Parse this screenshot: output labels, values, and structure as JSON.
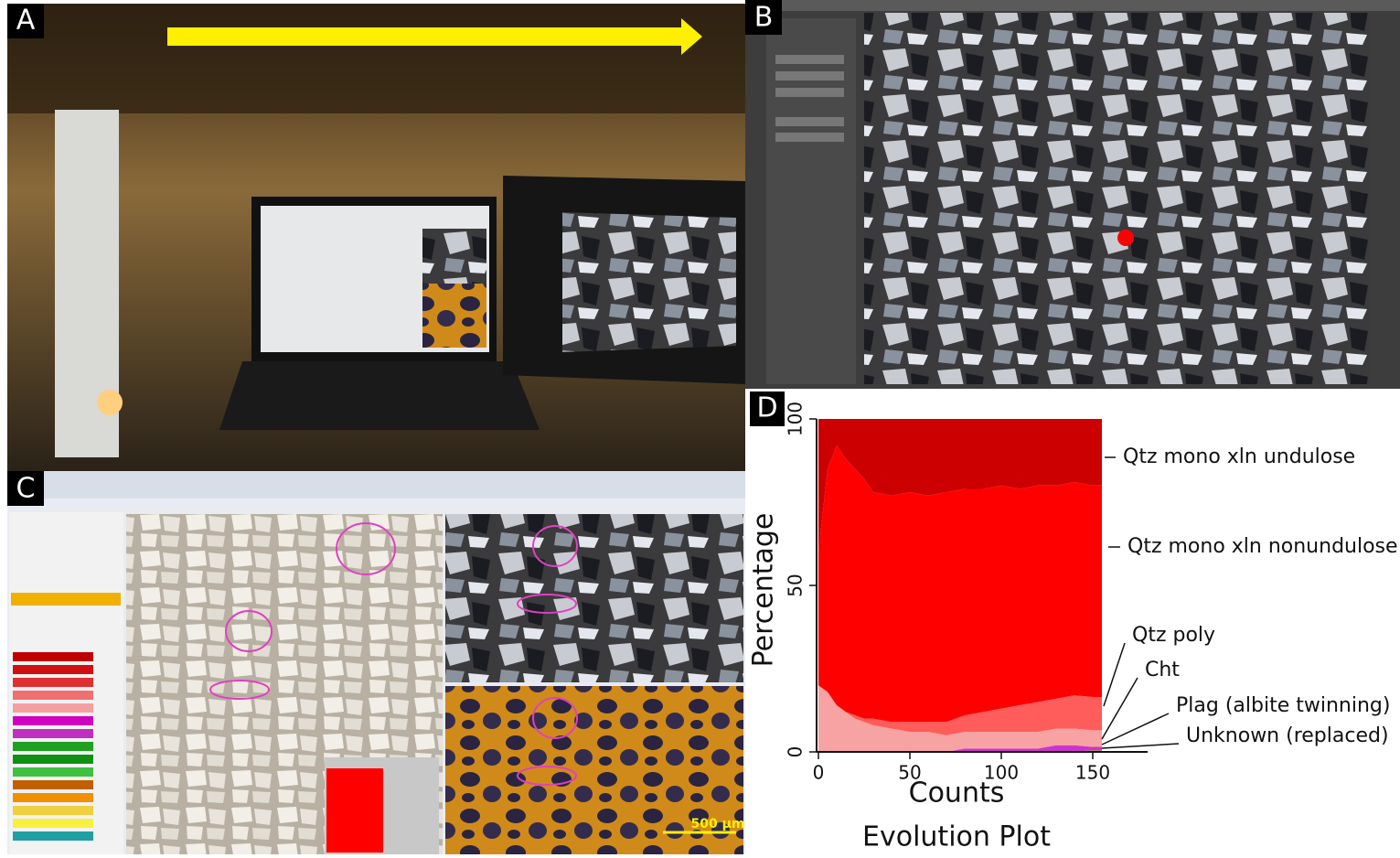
{
  "panels": {
    "a": "A",
    "b": "B",
    "c": "C",
    "d": "D"
  },
  "scale_bar": "500 µm",
  "chart_data": {
    "type": "area",
    "caption": "Evolution Plot",
    "x_label": "Counts",
    "y_label": "Percentage",
    "xlim": [
      -1,
      180
    ],
    "xticks": [
      0,
      50,
      100,
      150
    ],
    "ylim": [
      0,
      100
    ],
    "yticks": [
      0,
      50,
      100
    ],
    "x": [
      0,
      5,
      10,
      15,
      20,
      25,
      30,
      40,
      50,
      60,
      70,
      80,
      90,
      100,
      110,
      120,
      130,
      140,
      150,
      155
    ],
    "series": [
      {
        "name": "Unknown (replaced)",
        "color": "#9a8a3a",
        "values": [
          0,
          0,
          0,
          0,
          0,
          0,
          0,
          0,
          0,
          0,
          0,
          0,
          0,
          0,
          0,
          0,
          0,
          0,
          0.5,
          0.5
        ]
      },
      {
        "name": "Plag (albite twinning)",
        "color": "#cc33cc",
        "values": [
          0,
          0,
          0,
          0,
          0,
          0,
          0,
          0,
          0,
          0,
          0,
          1,
          1,
          1,
          1,
          1,
          2,
          2,
          1,
          1
        ]
      },
      {
        "name": "Cht",
        "color": "#f7a3a3",
        "values": [
          20,
          18,
          14,
          12,
          10,
          9,
          8,
          7,
          6,
          6,
          5,
          5,
          5,
          5,
          5,
          5,
          5,
          5,
          5,
          5
        ]
      },
      {
        "name": "Qtz poly",
        "color": "#ff5c5c",
        "values": [
          0,
          0,
          0,
          0,
          1,
          1,
          2,
          2,
          3,
          3,
          4,
          5,
          6,
          7,
          8,
          9,
          9,
          10,
          10,
          10
        ]
      },
      {
        "name": "Qtz mono xln nonundulose",
        "color": "#ff0000",
        "values": [
          40,
          67,
          78,
          76,
          74,
          72,
          68,
          68,
          69,
          68,
          69,
          68,
          67,
          67,
          65,
          65,
          64,
          64,
          63.5,
          63.5
        ]
      },
      {
        "name": "Qtz mono xln undulose",
        "color": "#cc0000",
        "values": [
          40,
          15,
          8,
          12,
          15,
          18,
          22,
          23,
          22,
          23,
          22,
          21,
          21,
          20,
          21,
          20,
          20,
          19,
          20,
          20
        ]
      }
    ]
  }
}
